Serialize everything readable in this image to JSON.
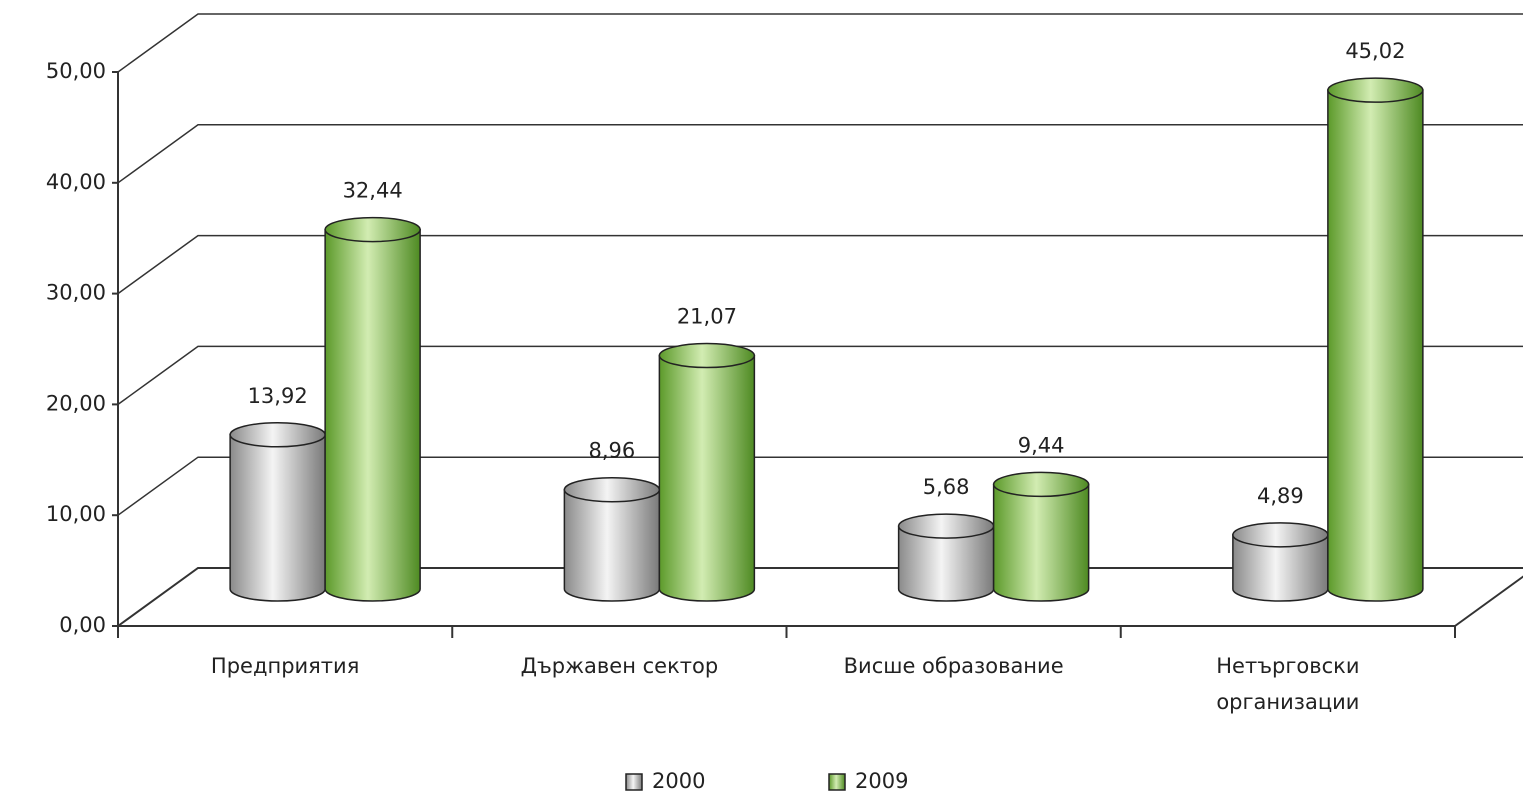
{
  "chart_data": {
    "type": "bar3d",
    "categories": [
      "Предприятия",
      "Държавен сектор",
      "Висше образование",
      "Нетърговски организации"
    ],
    "series": [
      {
        "name": "2000",
        "color": "#c8c8c8",
        "values": [
          13.92,
          8.96,
          5.68,
          4.89
        ],
        "value_labels": [
          "13,92",
          "8,96",
          "5,68",
          "4,89"
        ]
      },
      {
        "name": "2009",
        "color": "#8cc34a",
        "values": [
          32.44,
          21.07,
          9.44,
          45.02
        ],
        "value_labels": [
          "32,44",
          "21,07",
          "9,44",
          "45,02"
        ]
      }
    ],
    "ylim": [
      0,
      50
    ],
    "yticks": [
      {
        "value": 0,
        "label": "0,00"
      },
      {
        "value": 10,
        "label": "10,00"
      },
      {
        "value": 20,
        "label": "20,00"
      },
      {
        "value": 30,
        "label": "30,00"
      },
      {
        "value": 40,
        "label": "40,00"
      },
      {
        "value": 50,
        "label": "50,00"
      }
    ],
    "grid": true,
    "legend": "bottom"
  }
}
